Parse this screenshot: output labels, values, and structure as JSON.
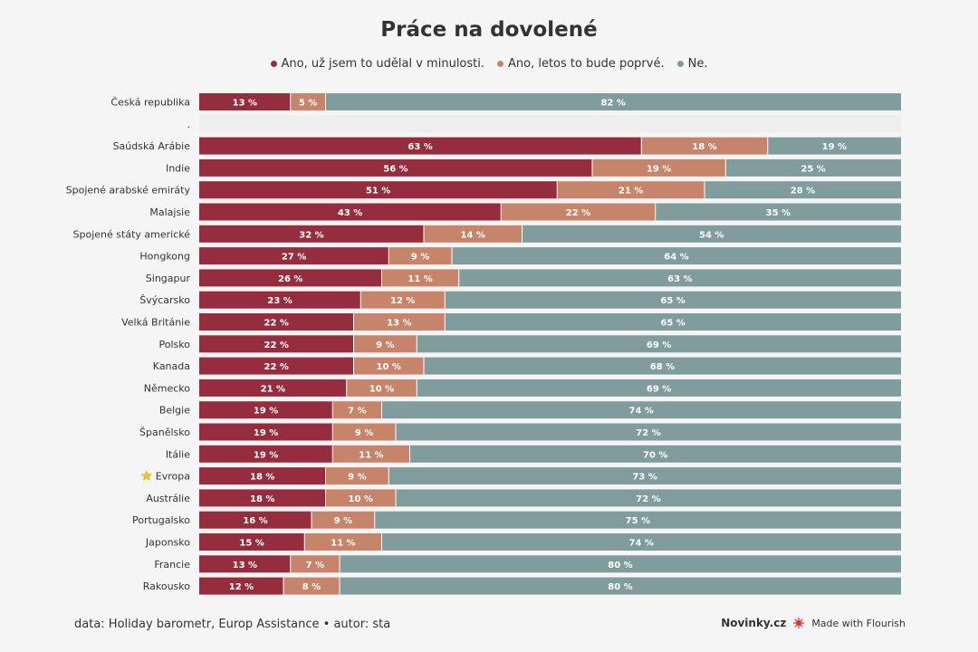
{
  "title": "Práce na dovolené",
  "legend": [
    {
      "label": "Ano, už jsem to udělal v minulosti.",
      "color": "#952d3f"
    },
    {
      "label": "Ano, letos to bude poprvé.",
      "color": "#c6856a"
    },
    {
      "label": "Ne.",
      "color": "#819c9d"
    }
  ],
  "footer": {
    "source": "data: Holiday barometr, Europ Assistance • autor: sta",
    "brand": "Novinky.cz",
    "made_with": "Made with Flourish"
  },
  "chart_data": {
    "type": "bar",
    "orientation": "horizontal",
    "stacked": true,
    "title": "Práce na dovolené",
    "xlim": [
      0,
      100
    ],
    "value_suffix": " %",
    "categories": [
      "Česká republika",
      ".",
      "Saúdská Arábie",
      "Indie",
      "Spojené arabské emiráty",
      "Malajsie",
      "Spojené státy americké",
      "Hongkong",
      "Singapur",
      "Švýcarsko",
      "Velká Británie",
      "Polsko",
      "Kanada",
      "Německo",
      "Belgie",
      "Španělsko",
      "Itálie",
      "Evropa",
      "Austrálie",
      "Portugalsko",
      "Japonsko",
      "Francie",
      "Rakousko"
    ],
    "category_icons": {
      "Evropa": "star-icon"
    },
    "series": [
      {
        "name": "Ano, už jsem to udělal v minulosti.",
        "color": "#952d3f",
        "values": [
          13,
          null,
          63,
          56,
          51,
          43,
          32,
          27,
          26,
          23,
          22,
          22,
          22,
          21,
          19,
          19,
          19,
          18,
          18,
          16,
          15,
          13,
          12
        ]
      },
      {
        "name": "Ano, letos to bude poprvé.",
        "color": "#c6856a",
        "values": [
          5,
          null,
          18,
          19,
          21,
          22,
          14,
          9,
          11,
          12,
          13,
          9,
          10,
          10,
          7,
          9,
          11,
          9,
          10,
          9,
          11,
          7,
          8
        ]
      },
      {
        "name": "Ne.",
        "color": "#819c9d",
        "values": [
          82,
          null,
          19,
          25,
          28,
          35,
          54,
          64,
          63,
          65,
          65,
          69,
          68,
          69,
          74,
          72,
          70,
          73,
          72,
          75,
          74,
          80,
          80
        ]
      }
    ]
  }
}
